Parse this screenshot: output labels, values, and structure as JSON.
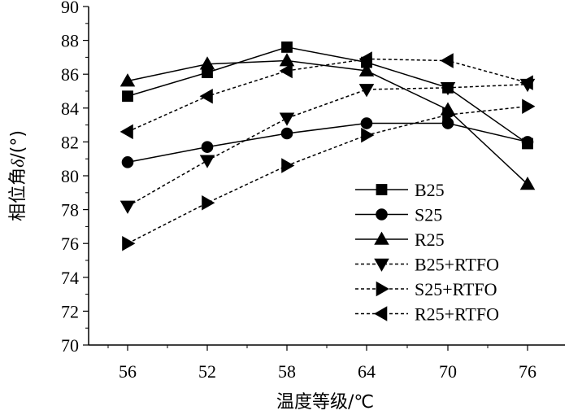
{
  "chart_data": {
    "type": "line",
    "categories": [
      "56",
      "52",
      "58",
      "64",
      "70",
      "76"
    ],
    "xlabel": "温度等级/℃",
    "ylabel_prefix": "相位角",
    "ylabel_symbol": "δ",
    "ylabel_suffix": "/(°)",
    "ylim": [
      70,
      90
    ],
    "ytick_step": 2,
    "ytick_labels": [
      "70",
      "72",
      "74",
      "76",
      "78",
      "80",
      "82",
      "84",
      "86",
      "88",
      "90"
    ],
    "grid": false,
    "legend_position": "right-center",
    "series": [
      {
        "name": "B25",
        "marker": "square",
        "dash": "solid",
        "values": [
          84.7,
          86.1,
          87.6,
          86.7,
          85.2,
          81.9
        ]
      },
      {
        "name": "S25",
        "marker": "circle",
        "dash": "solid",
        "values": [
          80.8,
          81.7,
          82.5,
          83.1,
          83.1,
          82.0
        ]
      },
      {
        "name": "R25",
        "marker": "triangle-up",
        "dash": "solid",
        "values": [
          85.6,
          86.6,
          86.8,
          86.2,
          83.9,
          79.5
        ]
      },
      {
        "name": "B25+RTFO",
        "marker": "triangle-down",
        "dash": "dashed",
        "values": [
          78.2,
          80.9,
          83.4,
          85.1,
          85.2,
          85.4
        ]
      },
      {
        "name": "S25+RTFO",
        "marker": "triangle-right",
        "dash": "dashed",
        "values": [
          76.0,
          78.4,
          80.6,
          82.4,
          83.6,
          84.1
        ]
      },
      {
        "name": "R25+RTFO",
        "marker": "triangle-left",
        "dash": "dashed",
        "values": [
          82.6,
          84.7,
          86.2,
          86.9,
          86.8,
          85.5
        ]
      }
    ]
  }
}
